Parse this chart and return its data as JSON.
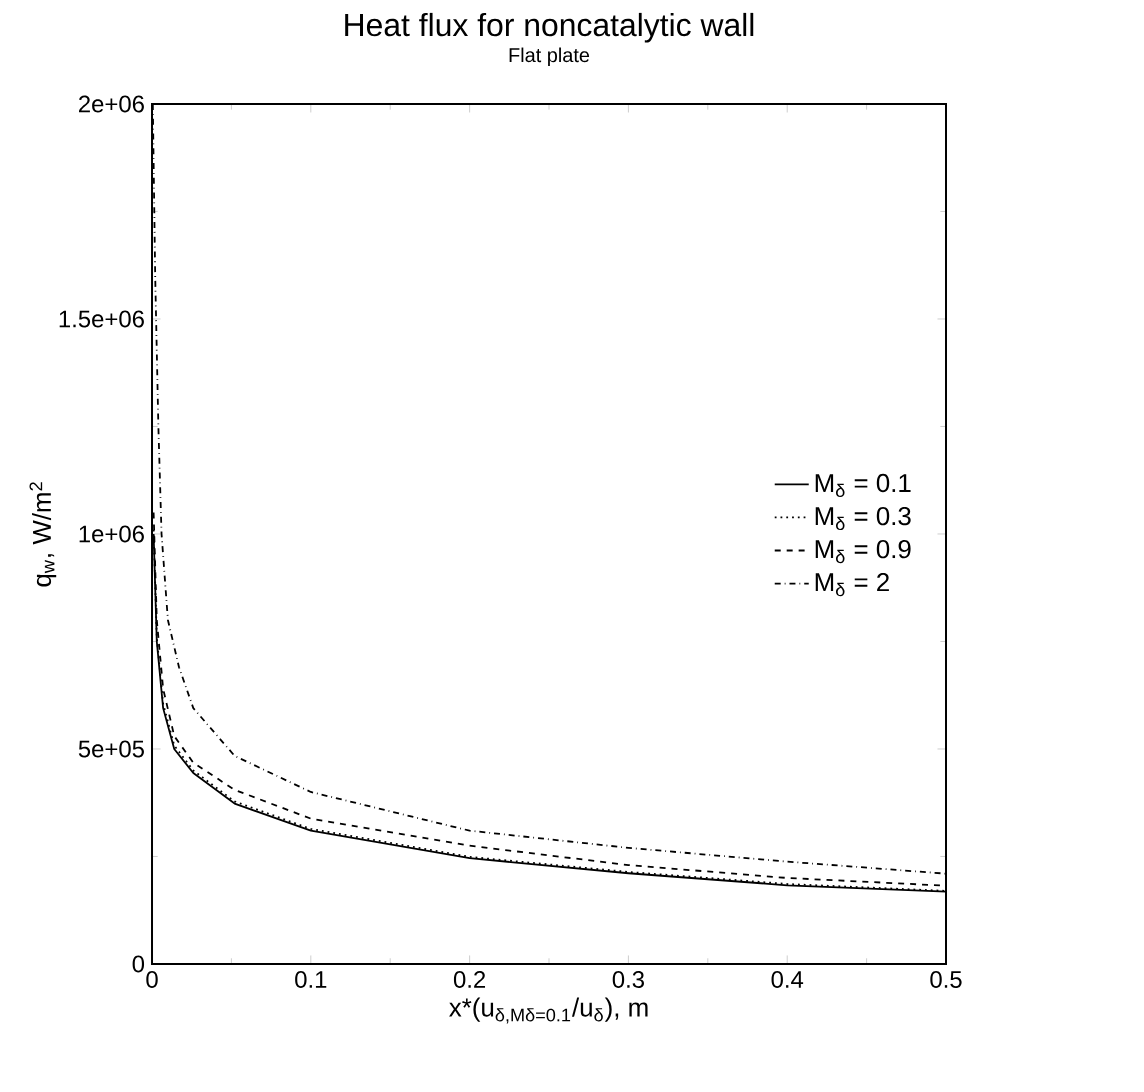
{
  "chart_data": {
    "type": "line",
    "title": "Heat flux for noncatalytic wall",
    "subtitle": "Flat plate",
    "xlabel": "x*(u$_{δ,Mδ=0.1}$/u$_{δ}$), m",
    "ylabel": "q$_{w}$, W/m$^{2}$",
    "xlim": [
      0,
      0.5
    ],
    "ylim": [
      0,
      2000000
    ],
    "xticks": [
      0,
      0.1,
      0.2,
      0.3,
      0.4,
      0.5
    ],
    "yticks": [
      {
        "value": 0,
        "label": "0"
      },
      {
        "value": 500000,
        "label": "5e+05"
      },
      {
        "value": 1000000,
        "label": "1e+06"
      },
      {
        "value": 1500000,
        "label": "1.5e+06"
      },
      {
        "value": 2000000,
        "label": "2e+06"
      }
    ],
    "legend": "right",
    "marker": "none",
    "grid": false,
    "series": [
      {
        "name": "M$_{δ}$ = 0.1",
        "color": "#000000",
        "line_style": "solid",
        "x": [
          0.001,
          0.003,
          0.007,
          0.014,
          0.026,
          0.052,
          0.1,
          0.2,
          0.3,
          0.4,
          0.5
        ],
        "values": [
          1000000,
          750000,
          595000,
          500000,
          444000,
          373000,
          310000,
          246000,
          211000,
          183000,
          168000
        ]
      },
      {
        "name": "M$_{δ}$ = 0.3",
        "color": "#000000",
        "line_style": "dotted",
        "x": [
          0.001,
          0.003,
          0.007,
          0.014,
          0.026,
          0.052,
          0.1,
          0.2,
          0.3,
          0.4,
          0.5
        ],
        "values": [
          1010000,
          760000,
          605000,
          508000,
          450000,
          378000,
          314000,
          249000,
          214000,
          186000,
          170000
        ]
      },
      {
        "name": "M$_{δ}$ = 0.9",
        "color": "#000000",
        "line_style": "dashed",
        "x": [
          0.001,
          0.003,
          0.007,
          0.014,
          0.026,
          0.052,
          0.1,
          0.2,
          0.3,
          0.4,
          0.5
        ],
        "values": [
          1050000,
          800000,
          640000,
          530000,
          468000,
          405000,
          338000,
          275000,
          230000,
          200000,
          182000
        ]
      },
      {
        "name": "M$_{δ}$ = 2",
        "color": "#000000",
        "line_style": "dashdot",
        "x": [
          0.0005,
          0.002,
          0.004,
          0.006,
          0.01,
          0.017,
          0.026,
          0.052,
          0.1,
          0.2,
          0.3,
          0.4,
          0.5
        ],
        "values": [
          2000000,
          1600000,
          1250000,
          1000000,
          800000,
          690000,
          595000,
          484000,
          400000,
          310000,
          270000,
          238000,
          210000
        ]
      }
    ]
  }
}
